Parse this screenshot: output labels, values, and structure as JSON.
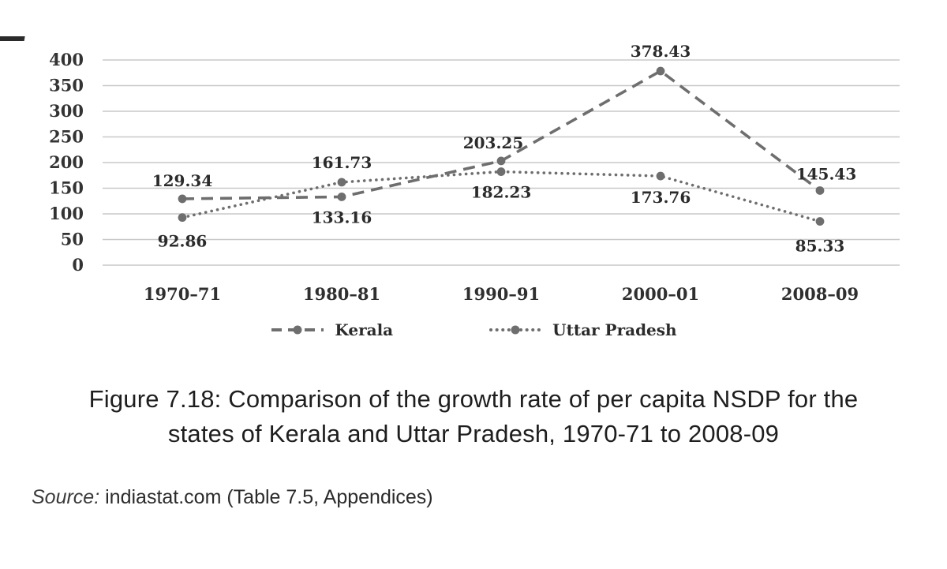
{
  "chart_data": {
    "type": "line",
    "categories": [
      "1970–71",
      "1980–81",
      "1990–91",
      "2000–01",
      "2008–09"
    ],
    "series": [
      {
        "name": "Kerala",
        "style": "dashed",
        "values": [
          129.34,
          133.16,
          203.25,
          378.43,
          145.43
        ],
        "label_offsets": [
          {
            "dx": 0,
            "dy": -16
          },
          {
            "dx": 0,
            "dy": 33
          },
          {
            "dx": -10,
            "dy": -16
          },
          {
            "dx": 0,
            "dy": -18
          },
          {
            "dx": 8,
            "dy": -14
          }
        ]
      },
      {
        "name": "Uttar Pradesh",
        "style": "dotted",
        "values": [
          92.86,
          161.73,
          182.23,
          173.76,
          85.33
        ],
        "label_offsets": [
          {
            "dx": 0,
            "dy": 37
          },
          {
            "dx": 0,
            "dy": -18
          },
          {
            "dx": 0,
            "dy": 33
          },
          {
            "dx": 0,
            "dy": 34
          },
          {
            "dx": 0,
            "dy": 38
          }
        ]
      }
    ],
    "title": "Figure 7.18: Comparison of the growth rate of per capita NSDP for the states of Kerala and Uttar Pradesh, 1970-71 to 2008-09",
    "xlabel": "",
    "ylabel": "",
    "ylim": [
      0,
      400
    ],
    "ytick_step": 50,
    "grid": true,
    "legend_position": "bottom",
    "line_color": "#6e6e6e",
    "grid_color": "#c8c8c8",
    "label_color": "#2b2b2b"
  },
  "legend": {
    "items": [
      {
        "label": "Kerala",
        "style": "dashed"
      },
      {
        "label": "Uttar Pradesh",
        "style": "dotted"
      }
    ]
  },
  "caption": {
    "text": "Figure 7.18: Comparison of the growth rate of per capita NSDP for the states of Kerala and Uttar Pradesh, 1970-71 to 2008-09"
  },
  "source": {
    "label": "Source:",
    "text": " indiastat.com (Table 7.5, Appendices)"
  }
}
